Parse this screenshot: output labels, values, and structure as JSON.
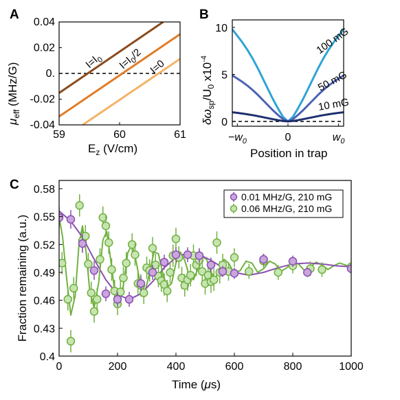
{
  "chart_data": [
    {
      "panel": "A",
      "type": "line",
      "xlabel": "E",
      "xlabel_sub": "z",
      "xlabel_unit": " (V/cm)",
      "ylabel": "μ",
      "ylabel_sub": "eff",
      "ylabel_unit": " (MHz/G)",
      "xlim": [
        59,
        61
      ],
      "ylim": [
        -0.04,
        0.04
      ],
      "xticks": [
        "59",
        "60",
        "61"
      ],
      "yticks": [
        "-0.04",
        "-0.02",
        "0.",
        "0.02",
        "0.04"
      ],
      "zero_line": "dashed",
      "series": [
        {
          "name": "I=I₀",
          "color": "#8a4a1c",
          "x": [
            59,
            60.72
          ],
          "y": [
            -0.0152,
            0.04
          ]
        },
        {
          "name": "I=I₀/2",
          "color": "#e07b26",
          "x": [
            59,
            61
          ],
          "y": [
            -0.0335,
            0.0305
          ]
        },
        {
          "name": "I=0",
          "color": "#f4b266",
          "x": [
            59.39,
            61
          ],
          "y": [
            -0.04,
            0.0113
          ]
        }
      ],
      "annotations": [
        "I=I",
        "0",
        "I=I",
        "0",
        "/2",
        "I=0"
      ]
    },
    {
      "panel": "B",
      "type": "line",
      "xlabel": "Position in trap",
      "ylabel": "δω",
      "ylabel_sub": "sp",
      "ylabel_mid": "/U",
      "ylabel_sub2": "0",
      "ylabel_tail": " x10",
      "ylabel_sup": "-4",
      "xlim": [
        -1.1,
        1.1
      ],
      "ylim": [
        -0.5,
        11
      ],
      "xticks": [
        "−w",
        "0",
        "w"
      ],
      "xtick_subs": [
        "0",
        "",
        "0"
      ],
      "yticks": [
        "0",
        "5",
        "10"
      ],
      "zero_line": "dashed",
      "series": [
        {
          "name": "100 mG",
          "color": "#2fa3d5",
          "amplitude": 10.0
        },
        {
          "name": "50 mG",
          "color": "#4a63b5",
          "amplitude": 5.0
        },
        {
          "name": "10 mG",
          "color": "#1d2f6e",
          "amplitude": 1.0
        }
      ],
      "curve_x": [
        -1.1,
        -1.0,
        -0.9,
        -0.8,
        -0.7,
        -0.6,
        -0.5,
        -0.4,
        -0.3,
        -0.2,
        -0.1,
        0,
        0.1,
        0.2,
        0.3,
        0.4,
        0.5,
        0.6,
        0.7,
        0.8,
        0.9,
        1.0,
        1.1
      ],
      "curve_shape": [
        0.98,
        0.91,
        0.84,
        0.76,
        0.67,
        0.57,
        0.46,
        0.35,
        0.24,
        0.14,
        0.05,
        0,
        0.05,
        0.14,
        0.24,
        0.35,
        0.46,
        0.57,
        0.67,
        0.76,
        0.84,
        0.91,
        0.98
      ]
    },
    {
      "panel": "C",
      "type": "scatter",
      "xlabel": "Time (",
      "xlabel_mu": "μ",
      "xlabel_tail": "s)",
      "ylabel": "Fraction remaining (a.u.)",
      "xlim": [
        0,
        1000
      ],
      "ylim": [
        0.4,
        0.59
      ],
      "xticks": [
        0,
        200,
        400,
        600,
        800,
        1000
      ],
      "yticks": [
        "0.4",
        "0.43",
        "0.46",
        "0.49",
        "0.52",
        "0.55",
        "0.58"
      ],
      "ytick_values": [
        0.4,
        0.43,
        0.46,
        0.49,
        0.52,
        0.55,
        0.58
      ],
      "legend_position": "top-right",
      "series": [
        {
          "name": "0.01 MHz/G, 210 mG",
          "color": "#8b4fb1",
          "fill": "#c9a6dd",
          "points": [
            [
              0,
              0.549
            ],
            [
              40,
              0.547
            ],
            [
              80,
              0.521
            ],
            [
              120,
              0.492
            ],
            [
              160,
              0.467
            ],
            [
              200,
              0.461
            ],
            [
              240,
              0.461
            ],
            [
              280,
              0.478
            ],
            [
              320,
              0.49
            ],
            [
              360,
              0.501
            ],
            [
              400,
              0.509
            ],
            [
              440,
              0.509
            ],
            [
              480,
              0.508
            ],
            [
              520,
              0.498
            ],
            [
              560,
              0.491
            ],
            [
              600,
              0.489
            ],
            [
              700,
              0.504
            ],
            [
              800,
              0.502
            ],
            [
              850,
              0.49
            ],
            [
              1000,
              0.494
            ]
          ],
          "errors": [
            0.01,
            0.01,
            0.01,
            0.01,
            0.008,
            0.008,
            0.008,
            0.008,
            0.008,
            0.008,
            0.008,
            0.008,
            0.008,
            0.008,
            0.006,
            0.006,
            0.006,
            0.006,
            0.005,
            0.005
          ],
          "fit": [
            [
              0,
              0.556
            ],
            [
              40,
              0.545
            ],
            [
              80,
              0.528
            ],
            [
              120,
              0.504
            ],
            [
              160,
              0.482
            ],
            [
              200,
              0.466
            ],
            [
              240,
              0.461
            ],
            [
              280,
              0.467
            ],
            [
              320,
              0.48
            ],
            [
              360,
              0.495
            ],
            [
              400,
              0.506
            ],
            [
              440,
              0.511
            ],
            [
              480,
              0.509
            ],
            [
              520,
              0.503
            ],
            [
              560,
              0.495
            ],
            [
              600,
              0.49
            ],
            [
              650,
              0.487
            ],
            [
              700,
              0.49
            ],
            [
              750,
              0.495
            ],
            [
              800,
              0.499
            ],
            [
              850,
              0.5
            ],
            [
              900,
              0.499
            ],
            [
              950,
              0.497
            ],
            [
              1000,
              0.496
            ]
          ]
        },
        {
          "name": "0.06 MHz/G, 210 mG",
          "color": "#6fb13f",
          "fill": "#c7e4b1",
          "points": [
            [
              0,
              0.549
            ],
            [
              10,
              0.5
            ],
            [
              30,
              0.461
            ],
            [
              40,
              0.416
            ],
            [
              50,
              0.473
            ],
            [
              70,
              0.562
            ],
            [
              80,
              0.524
            ],
            [
              90,
              0.529
            ],
            [
              100,
              0.499
            ],
            [
              110,
              0.468
            ],
            [
              120,
              0.448
            ],
            [
              130,
              0.461
            ],
            [
              140,
              0.504
            ],
            [
              150,
              0.549
            ],
            [
              160,
              0.54
            ],
            [
              170,
              0.522
            ],
            [
              180,
              0.493
            ],
            [
              190,
              0.47
            ],
            [
              200,
              0.456
            ],
            [
              210,
              0.469
            ],
            [
              220,
              0.484
            ],
            [
              230,
              0.5
            ],
            [
              250,
              0.52
            ],
            [
              260,
              0.509
            ],
            [
              270,
              0.478
            ],
            [
              280,
              0.476
            ],
            [
              290,
              0.468
            ],
            [
              300,
              0.495
            ],
            [
              310,
              0.492
            ],
            [
              320,
              0.516
            ],
            [
              330,
              0.498
            ],
            [
              340,
              0.486
            ],
            [
              350,
              0.481
            ],
            [
              360,
              0.477
            ],
            [
              370,
              0.47
            ],
            [
              380,
              0.49
            ],
            [
              390,
              0.508
            ],
            [
              400,
              0.526
            ],
            [
              410,
              0.506
            ],
            [
              420,
              0.484
            ],
            [
              430,
              0.476
            ],
            [
              440,
              0.482
            ],
            [
              450,
              0.487
            ],
            [
              460,
              0.508
            ],
            [
              470,
              0.498
            ],
            [
              480,
              0.503
            ],
            [
              490,
              0.491
            ],
            [
              500,
              0.478
            ],
            [
              510,
              0.487
            ],
            [
              520,
              0.48
            ],
            [
              530,
              0.482
            ],
            [
              540,
              0.522
            ],
            [
              550,
              0.49
            ],
            [
              560,
              0.498
            ],
            [
              580,
              0.491
            ],
            [
              600,
              0.506
            ],
            [
              650,
              0.491
            ],
            [
              700,
              0.502
            ],
            [
              750,
              0.49
            ],
            [
              800,
              0.497
            ],
            [
              860,
              0.494
            ],
            [
              900,
              0.493
            ],
            [
              1000,
              0.496
            ]
          ],
          "errors": [
            0.012,
            0.012,
            0.012,
            0.012,
            0.012,
            0.012,
            0.012,
            0.012,
            0.012,
            0.012,
            0.012,
            0.012,
            0.012,
            0.012,
            0.012,
            0.012,
            0.012,
            0.012,
            0.012,
            0.012,
            0.012,
            0.012,
            0.012,
            0.012,
            0.012,
            0.012,
            0.012,
            0.012,
            0.012,
            0.012,
            0.012,
            0.012,
            0.012,
            0.012,
            0.012,
            0.012,
            0.012,
            0.012,
            0.012,
            0.012,
            0.012,
            0.012,
            0.012,
            0.012,
            0.012,
            0.012,
            0.012,
            0.012,
            0.012,
            0.012,
            0.012,
            0.012,
            0.012,
            0.012,
            0.01,
            0.01,
            0.008,
            0.008,
            0.008,
            0.008,
            0.008,
            0.008,
            0.008
          ],
          "fit": [
            [
              0,
              0.55
            ],
            [
              12,
              0.528
            ],
            [
              25,
              0.486
            ],
            [
              40,
              0.444
            ],
            [
              55,
              0.465
            ],
            [
              68,
              0.52
            ],
            [
              80,
              0.54
            ],
            [
              92,
              0.513
            ],
            [
              105,
              0.47
            ],
            [
              120,
              0.452
            ],
            [
              135,
              0.478
            ],
            [
              150,
              0.525
            ],
            [
              163,
              0.534
            ],
            [
              176,
              0.505
            ],
            [
              190,
              0.47
            ],
            [
              205,
              0.458
            ],
            [
              220,
              0.476
            ],
            [
              235,
              0.511
            ],
            [
              250,
              0.52
            ],
            [
              265,
              0.5
            ],
            [
              280,
              0.474
            ],
            [
              295,
              0.47
            ],
            [
              310,
              0.49
            ],
            [
              325,
              0.512
            ],
            [
              340,
              0.51
            ],
            [
              355,
              0.489
            ],
            [
              370,
              0.474
            ],
            [
              385,
              0.478
            ],
            [
              400,
              0.5
            ],
            [
              415,
              0.512
            ],
            [
              430,
              0.503
            ],
            [
              445,
              0.487
            ],
            [
              460,
              0.482
            ],
            [
              475,
              0.494
            ],
            [
              490,
              0.507
            ],
            [
              505,
              0.504
            ],
            [
              520,
              0.49
            ],
            [
              535,
              0.484
            ],
            [
              550,
              0.493
            ],
            [
              565,
              0.504
            ],
            [
              580,
              0.5
            ],
            [
              600,
              0.489
            ],
            [
              620,
              0.492
            ],
            [
              640,
              0.502
            ],
            [
              660,
              0.5
            ],
            [
              680,
              0.49
            ],
            [
              700,
              0.494
            ],
            [
              720,
              0.502
            ],
            [
              740,
              0.499
            ],
            [
              760,
              0.491
            ],
            [
              780,
              0.495
            ],
            [
              800,
              0.501
            ],
            [
              820,
              0.499
            ],
            [
              840,
              0.492
            ],
            [
              860,
              0.496
            ],
            [
              880,
              0.501
            ],
            [
              900,
              0.498
            ],
            [
              920,
              0.493
            ],
            [
              940,
              0.497
            ],
            [
              960,
              0.5
            ],
            [
              980,
              0.498
            ],
            [
              1000,
              0.495
            ]
          ]
        }
      ]
    }
  ]
}
